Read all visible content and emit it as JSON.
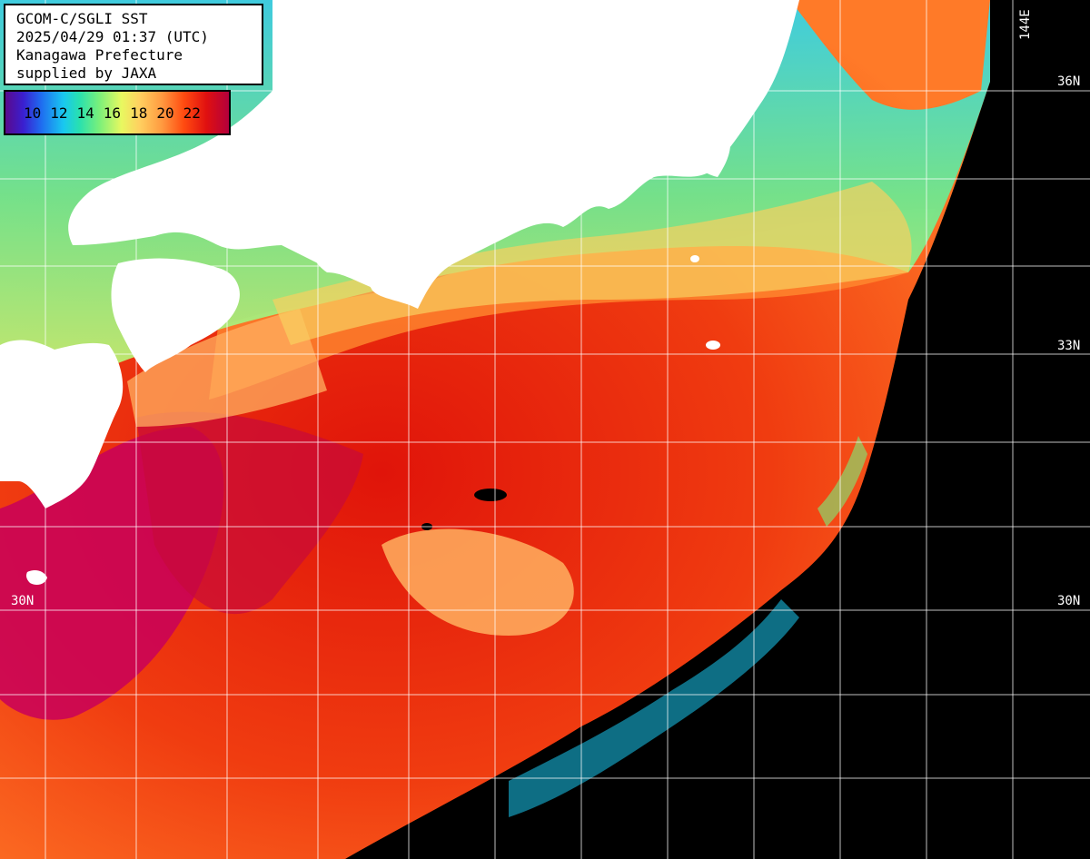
{
  "header": {
    "satellite": "GCOM-C/SGLI SST",
    "datetime": "2025/04/29 01:37 (UTC)",
    "prefecture": "Kanagawa Prefecture",
    "supplier": "supplied by JAXA"
  },
  "legend": {
    "ticks": [
      "10",
      "12",
      "14",
      "16",
      "18",
      "20",
      "22"
    ]
  },
  "grid": {
    "lat_labels_right": [
      "36N",
      "33N",
      "30N"
    ],
    "lat_labels_left": [
      "30N"
    ],
    "lon_labels": [
      "144E"
    ]
  }
}
